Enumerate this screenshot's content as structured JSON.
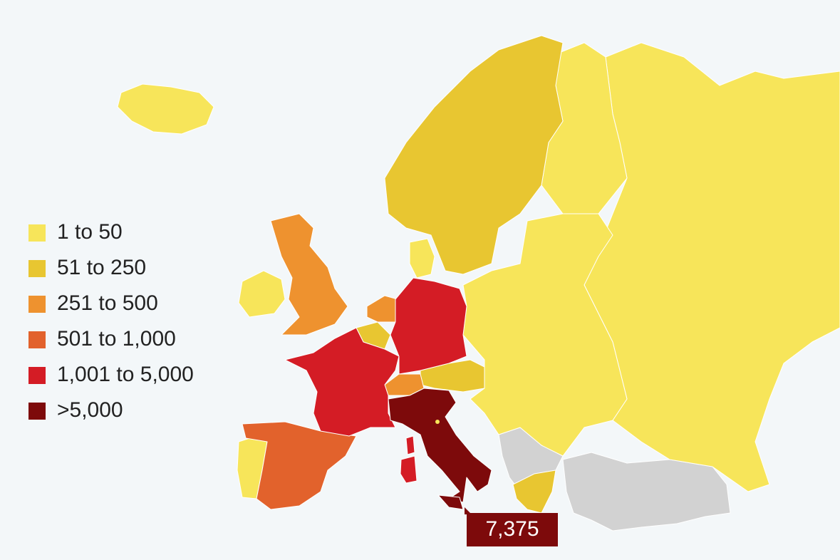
{
  "legend": {
    "items": [
      {
        "label": "1 to 50",
        "color": "#f7e55a"
      },
      {
        "label": "51 to 250",
        "color": "#e8c631"
      },
      {
        "label": "251 to 500",
        "color": "#ee922f"
      },
      {
        "label": "501 to 1,000",
        "color": "#e2622c"
      },
      {
        "label": "1,001 to 5,000",
        "color": "#d41c25"
      },
      {
        "label": ">5,000",
        "color": "#7d0a0b"
      }
    ]
  },
  "callout": {
    "label": "7,375"
  }
}
